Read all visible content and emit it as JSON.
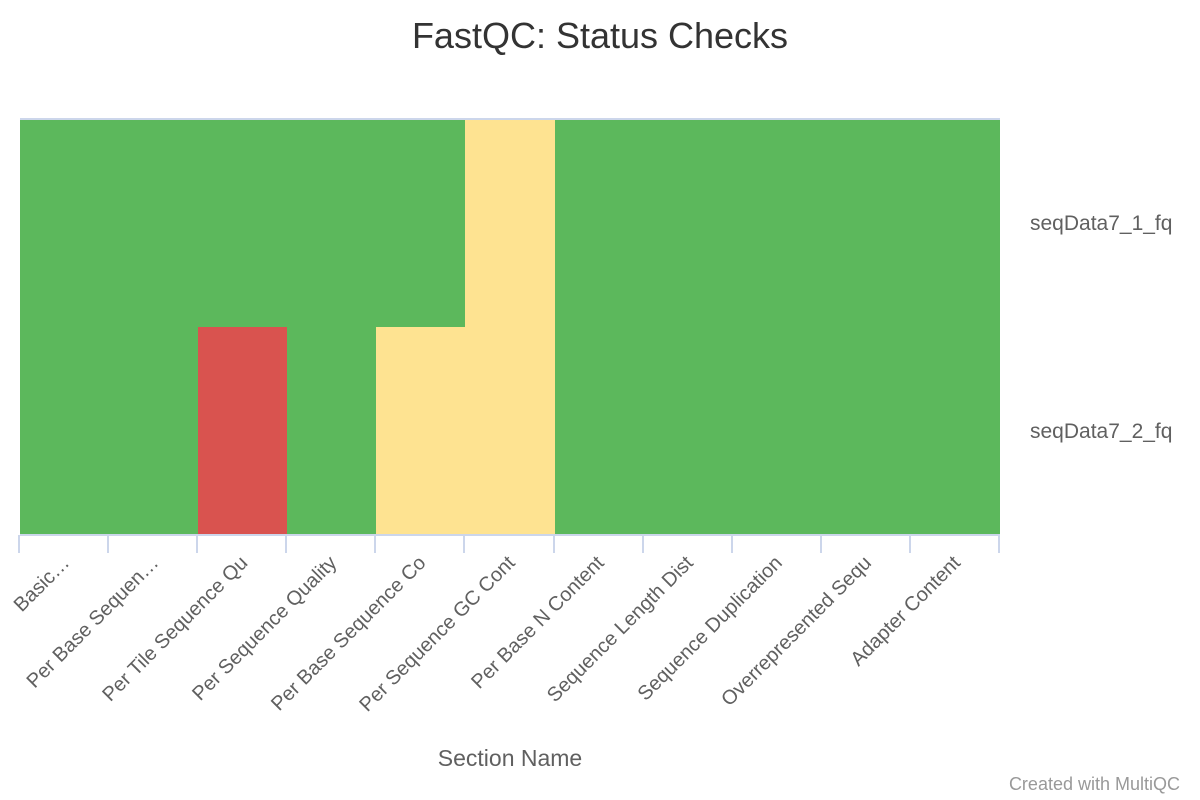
{
  "chart_data": {
    "type": "heatmap",
    "title": "FastQC: Status Checks",
    "xlabel": "Section Name",
    "ylabel": "",
    "credit": "Created with MultiQC",
    "legend": "none",
    "grid": false,
    "columns": [
      "Basic…",
      "Per Base Sequen…",
      "Per Tile Sequence Qu",
      "Per Sequence Quality",
      "Per Base Sequence Co",
      "Per Sequence GC Cont",
      "Per Base N Content",
      "Sequence Length Dist",
      "Sequence Duplication",
      "Overrepresented Sequ",
      "Adapter Content"
    ],
    "rows": [
      {
        "name": "seqData7_1_fq",
        "values": [
          "pass",
          "pass",
          "pass",
          "pass",
          "pass",
          "warn",
          "pass",
          "pass",
          "pass",
          "pass",
          "pass"
        ]
      },
      {
        "name": "seqData7_2_fq",
        "values": [
          "pass",
          "pass",
          "fail",
          "pass",
          "warn",
          "warn",
          "pass",
          "pass",
          "pass",
          "pass",
          "pass"
        ]
      }
    ],
    "status_colors": {
      "pass": "#5cb85c",
      "warn": "#fee391",
      "fail": "#d9534f"
    },
    "axis_color": "#ccd6eb"
  }
}
